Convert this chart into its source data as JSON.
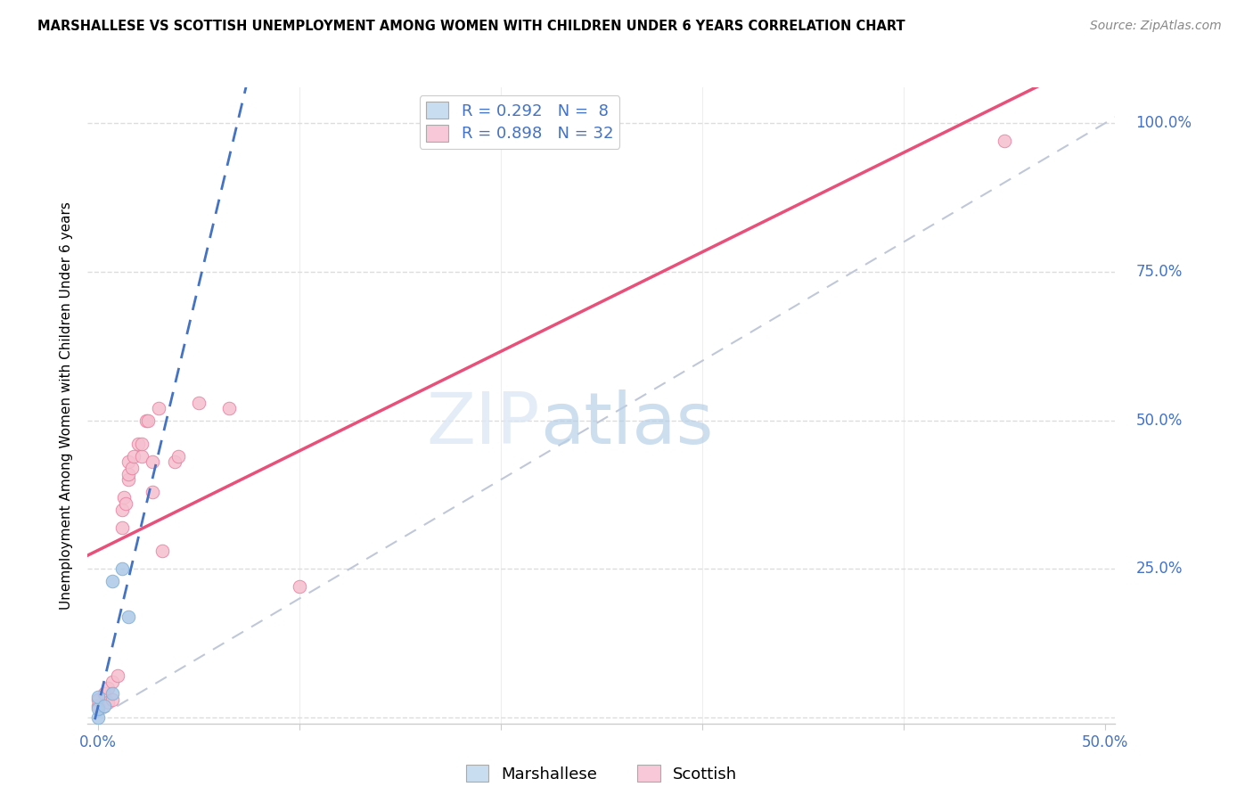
{
  "title": "MARSHALLESE VS SCOTTISH UNEMPLOYMENT AMONG WOMEN WITH CHILDREN UNDER 6 YEARS CORRELATION CHART",
  "source": "Source: ZipAtlas.com",
  "tick_color": "#4472c4",
  "ylabel": "Unemployment Among Women with Children Under 6 years",
  "watermark_zip": "ZIP",
  "watermark_atlas": "atlas",
  "xlim": [
    -0.005,
    0.505
  ],
  "ylim": [
    -0.01,
    1.06
  ],
  "marshallese_R": 0.292,
  "marshallese_N": 8,
  "scottish_R": 0.898,
  "scottish_N": 32,
  "marshallese_color": "#adc8e8",
  "marshallese_edge": "#7bafd4",
  "scottish_color": "#f5bfce",
  "scottish_edge": "#e87fa0",
  "trend_marshallese_color": "#4472c4",
  "trend_scottish_color": "#e8507a",
  "trend_diagonal_color": "#c0c8d8",
  "marshallese_x": [
    0.0,
    0.0,
    0.0,
    0.003,
    0.007,
    0.007,
    0.012,
    0.015
  ],
  "marshallese_y": [
    0.0,
    0.015,
    0.035,
    0.02,
    0.04,
    0.23,
    0.25,
    0.17
  ],
  "scottish_x": [
    0.0,
    0.0,
    0.003,
    0.005,
    0.005,
    0.007,
    0.007,
    0.01,
    0.012,
    0.012,
    0.013,
    0.014,
    0.015,
    0.015,
    0.015,
    0.017,
    0.018,
    0.02,
    0.022,
    0.022,
    0.024,
    0.025,
    0.027,
    0.027,
    0.03,
    0.032,
    0.038,
    0.04,
    0.05,
    0.065,
    0.1,
    0.45
  ],
  "scottish_y": [
    0.02,
    0.03,
    0.04,
    0.025,
    0.05,
    0.03,
    0.06,
    0.07,
    0.32,
    0.35,
    0.37,
    0.36,
    0.4,
    0.41,
    0.43,
    0.42,
    0.44,
    0.46,
    0.44,
    0.46,
    0.5,
    0.5,
    0.43,
    0.38,
    0.52,
    0.28,
    0.43,
    0.44,
    0.53,
    0.52,
    0.22,
    0.97
  ],
  "marker_size": 110,
  "legend_box_marshallese": "#c8ddf0",
  "legend_box_scottish": "#f8c8d8",
  "grid_color": "#dddddd",
  "spine_color": "#cccccc"
}
